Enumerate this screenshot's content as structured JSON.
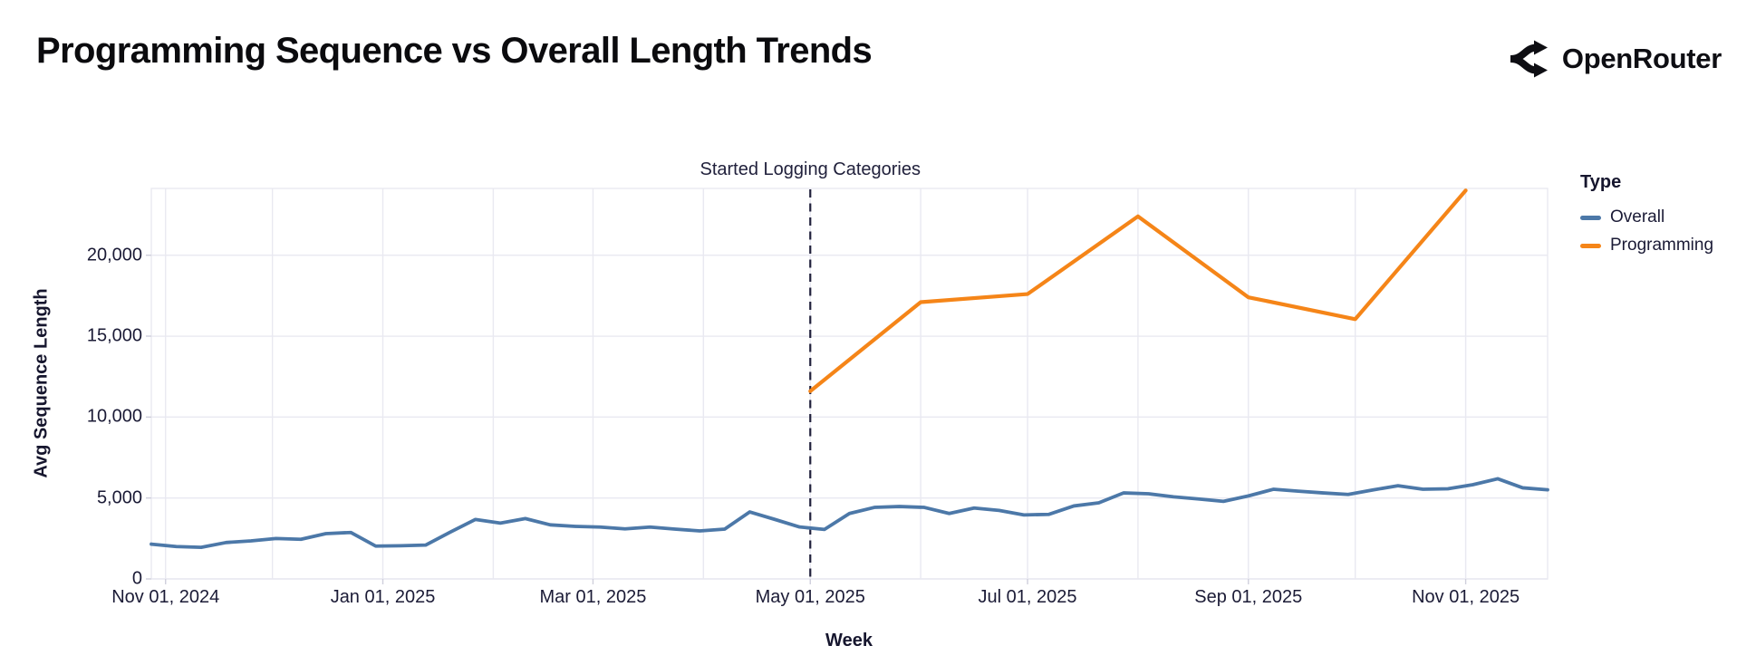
{
  "page": {
    "title": "Programming Sequence vs Overall Length Trends",
    "brand": "OpenRouter"
  },
  "chart": {
    "x_axis": {
      "label": "Week",
      "ticks": [
        {
          "date": "2024-11-01",
          "label": "Nov 01, 2024"
        },
        {
          "date": "2025-01-01",
          "label": "Jan 01, 2025"
        },
        {
          "date": "2025-03-01",
          "label": "Mar 01, 2025"
        },
        {
          "date": "2025-05-01",
          "label": "May 01, 2025"
        },
        {
          "date": "2025-07-01",
          "label": "Jul 01, 2025"
        },
        {
          "date": "2025-09-01",
          "label": "Sep 01, 2025"
        },
        {
          "date": "2025-11-01",
          "label": "Nov 01, 2025"
        }
      ]
    },
    "y_axis": {
      "label": "Avg Sequence Length",
      "ticks": [
        {
          "value": 0,
          "label": "0"
        },
        {
          "value": 5000,
          "label": "5,000"
        },
        {
          "value": 10000,
          "label": "10,000"
        },
        {
          "value": 15000,
          "label": "15,000"
        },
        {
          "value": 20000,
          "label": "20,000"
        }
      ]
    },
    "legend": {
      "title": "Type",
      "items": [
        {
          "label": "Overall",
          "color": "#4c78a8"
        },
        {
          "label": "Programming",
          "color": "#f58518"
        }
      ]
    },
    "annotation": {
      "label": "Started Logging Categories",
      "date": "2025-05-01"
    },
    "colors": {
      "overall_line": "#4c78a8",
      "programming_line": "#f58518",
      "grid": "#e9e9f1",
      "axis_text": "#1b1b36",
      "annotation_line": "#21213c"
    }
  },
  "chart_data": {
    "type": "line",
    "title": "Programming Sequence vs Overall Length Trends",
    "xlabel": "Week",
    "ylabel": "Avg Sequence Length",
    "x_domain": [
      "2024-10-28",
      "2025-11-24"
    ],
    "ylim": [
      0,
      24100
    ],
    "y_ticks": [
      0,
      5000,
      10000,
      15000,
      20000
    ],
    "x_tick_dates": [
      "2024-11-01",
      "2025-01-01",
      "2025-03-01",
      "2025-05-01",
      "2025-07-01",
      "2025-09-01",
      "2025-11-01"
    ],
    "grid": true,
    "grid_month_dates": [
      "2024-11-01",
      "2024-12-01",
      "2025-01-01",
      "2025-02-01",
      "2025-03-01",
      "2025-04-01",
      "2025-05-01",
      "2025-06-01",
      "2025-07-01",
      "2025-08-01",
      "2025-09-01",
      "2025-10-01",
      "2025-11-01"
    ],
    "legend_position": "right",
    "annotation": {
      "label": "Started Logging Categories",
      "date": "2025-05-01",
      "style": "dashed-vertical-line"
    },
    "series": [
      {
        "name": "Overall",
        "color": "#4c78a8",
        "x": [
          "2024-10-28",
          "2024-11-04",
          "2024-11-11",
          "2024-11-18",
          "2024-11-25",
          "2024-12-02",
          "2024-12-09",
          "2024-12-16",
          "2024-12-23",
          "2024-12-30",
          "2025-01-06",
          "2025-01-13",
          "2025-01-20",
          "2025-01-27",
          "2025-02-03",
          "2025-02-10",
          "2025-02-17",
          "2025-02-24",
          "2025-03-03",
          "2025-03-10",
          "2025-03-17",
          "2025-03-24",
          "2025-03-31",
          "2025-04-07",
          "2025-04-14",
          "2025-04-21",
          "2025-04-28",
          "2025-05-05",
          "2025-05-12",
          "2025-05-19",
          "2025-05-26",
          "2025-06-02",
          "2025-06-09",
          "2025-06-16",
          "2025-06-23",
          "2025-06-30",
          "2025-07-07",
          "2025-07-14",
          "2025-07-21",
          "2025-07-28",
          "2025-08-04",
          "2025-08-11",
          "2025-08-18",
          "2025-08-25",
          "2025-09-01",
          "2025-09-08",
          "2025-09-15",
          "2025-09-22",
          "2025-09-29",
          "2025-10-06",
          "2025-10-13",
          "2025-10-20",
          "2025-10-27",
          "2025-11-03",
          "2025-11-10",
          "2025-11-17",
          "2025-11-24"
        ],
        "values": [
          2150,
          2000,
          1950,
          2250,
          2350,
          2500,
          2450,
          2800,
          2870,
          2030,
          2050,
          2090,
          2900,
          3675,
          3450,
          3730,
          3340,
          3245,
          3205,
          3095,
          3205,
          3080,
          2965,
          3080,
          4140,
          3680,
          3210,
          3060,
          4045,
          4420,
          4475,
          4420,
          4045,
          4380,
          4235,
          3955,
          3990,
          4510,
          4700,
          5315,
          5260,
          5075,
          4940,
          4795,
          5130,
          5540,
          5425,
          5315,
          5220,
          5500,
          5760,
          5540,
          5570,
          5820,
          6190,
          5630,
          5505
        ]
      },
      {
        "name": "Programming",
        "color": "#f58518",
        "x": [
          "2025-05-01",
          "2025-06-01",
          "2025-07-01",
          "2025-08-01",
          "2025-09-01",
          "2025-10-01",
          "2025-11-01"
        ],
        "values": [
          11600,
          17100,
          17600,
          22400,
          17400,
          16050,
          24000
        ]
      }
    ]
  }
}
